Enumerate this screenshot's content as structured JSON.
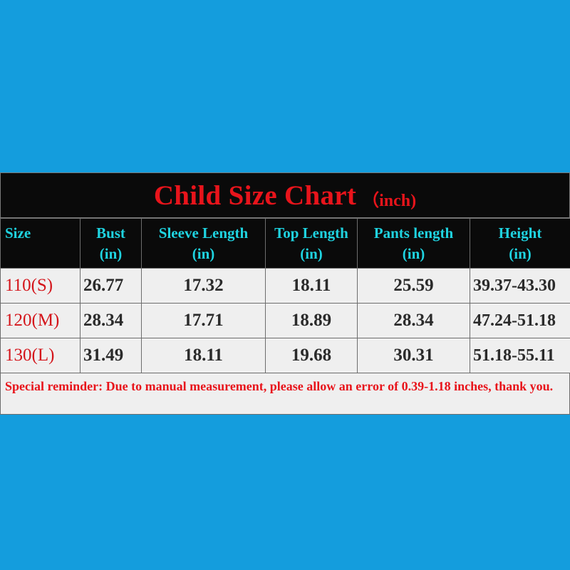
{
  "chart": {
    "title": "Child Size Chart",
    "title_unit": "（inch)",
    "headers": [
      {
        "line1": "Size",
        "line2": ""
      },
      {
        "line1": "Bust",
        "line2": "(in)"
      },
      {
        "line1": "Sleeve Length",
        "line2": "(in)"
      },
      {
        "line1": "Top Length",
        "line2": "(in)"
      },
      {
        "line1": "Pants length",
        "line2": "(in)"
      },
      {
        "line1": "Height",
        "line2": "(in)"
      }
    ],
    "rows": [
      {
        "size": "110(S)",
        "bust": "26.77",
        "sleeve": "17.32",
        "top": "18.11",
        "pants": "25.59",
        "height": "39.37-43.30"
      },
      {
        "size": "120(M)",
        "bust": "28.34",
        "sleeve": "17.71",
        "top": "18.89",
        "pants": "28.34",
        "height": "47.24-51.18"
      },
      {
        "size": "130(L)",
        "bust": "31.49",
        "sleeve": "18.11",
        "top": "19.68",
        "pants": "30.31",
        "height": "51.18-55.11"
      }
    ],
    "reminder": "Special reminder: Due to manual measurement, please allow an error of 0.39-1.18 inches, thank you."
  },
  "colors": {
    "background": "#149ddd",
    "header_bg": "#0a0a0a",
    "title": "#e8141b",
    "header_text": "#1fd3e0",
    "size_text": "#d4151b",
    "cell_bg": "#efefef"
  }
}
